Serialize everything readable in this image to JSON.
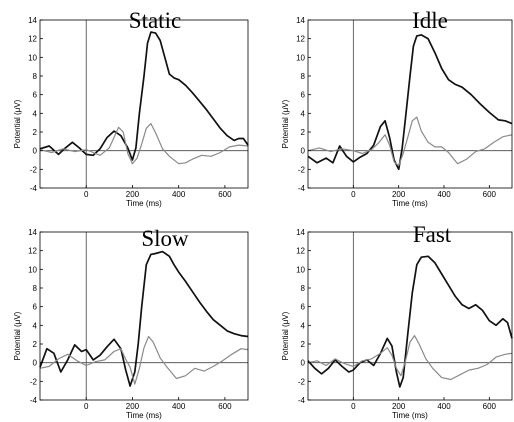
{
  "colors": {
    "black_trace": "#111111",
    "gray_trace": "#8a8a8a",
    "axis": "#000000",
    "zero_line": "#444444"
  },
  "chart_data": [
    {
      "type": "line",
      "title": "Static",
      "xlabel": "Time (ms)",
      "ylabel": "Potential (μV)",
      "xlim": [
        -200,
        700
      ],
      "ylim": [
        -4,
        14
      ],
      "xticks": [
        0,
        200,
        400,
        600
      ],
      "yticks": [
        -4,
        -2,
        0,
        2,
        4,
        6,
        8,
        10,
        12,
        14
      ],
      "series": [
        {
          "color": "black",
          "x": [
            -200,
            -160,
            -120,
            -90,
            -60,
            -30,
            0,
            30,
            60,
            90,
            120,
            150,
            180,
            200,
            215,
            230,
            250,
            265,
            280,
            300,
            320,
            340,
            360,
            380,
            400,
            430,
            460,
            490,
            520,
            550,
            580,
            610,
            640,
            660,
            680,
            700
          ],
          "y": [
            0.2,
            0.5,
            -0.4,
            0.3,
            0.9,
            0.3,
            -0.4,
            -0.5,
            0.2,
            1.4,
            2.1,
            1.6,
            0.3,
            -1,
            0.3,
            4,
            8,
            11.5,
            12.7,
            12.6,
            11.8,
            10,
            8.2,
            7.8,
            7.6,
            7,
            6.2,
            5.3,
            4.4,
            3.4,
            2.4,
            1.6,
            1.1,
            1.3,
            1.3,
            0.6
          ]
        },
        {
          "color": "gray",
          "x": [
            -200,
            -150,
            -100,
            -50,
            0,
            30,
            60,
            100,
            140,
            160,
            180,
            200,
            220,
            240,
            260,
            280,
            300,
            330,
            360,
            400,
            430,
            460,
            500,
            540,
            580,
            620,
            660,
            700
          ],
          "y": [
            0.1,
            -0.2,
            0.2,
            -0.1,
            0.1,
            -0.2,
            -0.5,
            0.3,
            2.5,
            2,
            -0.3,
            -1.4,
            -0.8,
            0.7,
            2.4,
            2.9,
            1.9,
            0.2,
            -0.6,
            -1.4,
            -1.3,
            -0.9,
            -0.5,
            -0.6,
            -0.2,
            0.4,
            0.6,
            0.5
          ]
        }
      ]
    },
    {
      "type": "line",
      "title": "Idle",
      "xlabel": "Time (ms)",
      "ylabel": "Potential (μV)",
      "xlim": [
        -200,
        700
      ],
      "ylim": [
        -4,
        14
      ],
      "xticks": [
        0,
        200,
        400,
        600
      ],
      "yticks": [
        -4,
        -2,
        0,
        2,
        4,
        6,
        8,
        10,
        12,
        14
      ],
      "series": [
        {
          "color": "black",
          "x": [
            -200,
            -160,
            -120,
            -90,
            -60,
            -30,
            0,
            30,
            60,
            90,
            120,
            140,
            160,
            180,
            200,
            215,
            230,
            250,
            265,
            280,
            300,
            330,
            360,
            390,
            420,
            450,
            480,
            520,
            560,
            600,
            640,
            670,
            700
          ],
          "y": [
            -0.6,
            -1.3,
            -0.8,
            -1.3,
            0.5,
            -0.6,
            -1.2,
            -0.7,
            -0.3,
            0.6,
            2.6,
            3.2,
            1.4,
            -1,
            -2,
            0.2,
            3.5,
            8,
            11.2,
            12.3,
            12.4,
            12,
            10.5,
            8.8,
            7.6,
            7.1,
            6.8,
            6,
            5,
            4.1,
            3.3,
            3.2,
            2.9
          ]
        },
        {
          "color": "gray",
          "x": [
            -200,
            -150,
            -100,
            -50,
            0,
            40,
            80,
            110,
            140,
            160,
            180,
            200,
            220,
            240,
            260,
            280,
            300,
            330,
            360,
            390,
            420,
            460,
            500,
            540,
            580,
            620,
            660,
            700
          ],
          "y": [
            0,
            0.3,
            -0.1,
            0.2,
            0,
            -0.3,
            0.1,
            0.8,
            1.7,
            0.6,
            -1.2,
            -1.6,
            -0.3,
            1.4,
            3.2,
            3.6,
            2.1,
            0.9,
            0.4,
            0.4,
            -0.2,
            -1.4,
            -0.9,
            -0.1,
            0.2,
            0.9,
            1.5,
            1.7
          ]
        }
      ]
    },
    {
      "type": "line",
      "title": "Slow",
      "xlabel": "Time (ms)",
      "ylabel": "Potential (μV)",
      "xlim": [
        -200,
        700
      ],
      "ylim": [
        -4,
        14
      ],
      "xticks": [
        0,
        200,
        400,
        600
      ],
      "yticks": [
        -4,
        -2,
        0,
        2,
        4,
        6,
        8,
        10,
        12,
        14
      ],
      "series": [
        {
          "color": "black",
          "x": [
            -200,
            -170,
            -140,
            -110,
            -80,
            -50,
            -20,
            0,
            30,
            60,
            90,
            120,
            150,
            170,
            190,
            210,
            225,
            240,
            260,
            280,
            300,
            330,
            360,
            380,
            400,
            430,
            460,
            490,
            520,
            550,
            580,
            610,
            640,
            670,
            700
          ],
          "y": [
            -0.5,
            1.5,
            1,
            -1,
            0.3,
            1.9,
            1.2,
            1.4,
            0.3,
            0.8,
            1.7,
            2.5,
            1.5,
            -0.7,
            -2.5,
            -1,
            2,
            6,
            10.5,
            11.6,
            11.7,
            11.9,
            11.4,
            10.5,
            9.7,
            8.7,
            7.6,
            6.5,
            5.5,
            4.6,
            4,
            3.4,
            3.1,
            2.9,
            2.8
          ]
        },
        {
          "color": "gray",
          "x": [
            -200,
            -160,
            -120,
            -80,
            -40,
            0,
            40,
            80,
            120,
            150,
            170,
            190,
            210,
            230,
            250,
            270,
            290,
            320,
            350,
            390,
            430,
            470,
            510,
            550,
            590,
            630,
            670,
            700
          ],
          "y": [
            -0.6,
            -0.4,
            0.4,
            0.9,
            0.2,
            -0.3,
            0.1,
            0.3,
            1.2,
            1.5,
            0.4,
            -0.5,
            -2.3,
            -0.6,
            1.6,
            2.8,
            2.2,
            0.5,
            -0.5,
            -1.7,
            -1.4,
            -0.6,
            -0.9,
            -0.4,
            0.2,
            0.9,
            1.5,
            1.4
          ]
        }
      ]
    },
    {
      "type": "line",
      "title": "Fast",
      "xlabel": "Time (ms)",
      "ylabel": "Potential (μV)",
      "xlim": [
        -200,
        700
      ],
      "ylim": [
        -4,
        14
      ],
      "xticks": [
        0,
        200,
        400,
        600
      ],
      "yticks": [
        -4,
        -2,
        0,
        2,
        4,
        6,
        8,
        10,
        12,
        14
      ],
      "series": [
        {
          "color": "black",
          "x": [
            -200,
            -170,
            -140,
            -110,
            -80,
            -50,
            -20,
            0,
            30,
            60,
            90,
            120,
            150,
            170,
            190,
            205,
            220,
            240,
            260,
            280,
            300,
            330,
            360,
            390,
            420,
            450,
            480,
            510,
            540,
            570,
            600,
            630,
            660,
            680,
            700
          ],
          "y": [
            0.2,
            -0.6,
            -1.2,
            -0.6,
            0.3,
            -0.4,
            -1,
            -0.8,
            0,
            0.3,
            -0.3,
            1,
            2.6,
            1.8,
            -1,
            -2.6,
            -1.6,
            3,
            7.5,
            10.5,
            11.3,
            11.4,
            10.7,
            9.5,
            8.3,
            7.1,
            6.2,
            5.8,
            6.2,
            5.6,
            4.5,
            4,
            4.7,
            4.3,
            2.6
          ]
        },
        {
          "color": "gray",
          "x": [
            -200,
            -160,
            -120,
            -80,
            -40,
            0,
            40,
            80,
            120,
            150,
            170,
            190,
            210,
            230,
            250,
            270,
            290,
            320,
            350,
            390,
            430,
            470,
            510,
            550,
            590,
            630,
            670,
            700
          ],
          "y": [
            0,
            0.2,
            -0.3,
            0.4,
            -0.1,
            -0.4,
            0.2,
            0.4,
            1,
            1.6,
            0.8,
            -0.6,
            -1.4,
            0.2,
            2.2,
            2.9,
            2,
            0.4,
            -0.6,
            -1.6,
            -1.8,
            -1.3,
            -0.8,
            -0.6,
            -0.2,
            0.6,
            0.9,
            1
          ]
        }
      ]
    }
  ]
}
